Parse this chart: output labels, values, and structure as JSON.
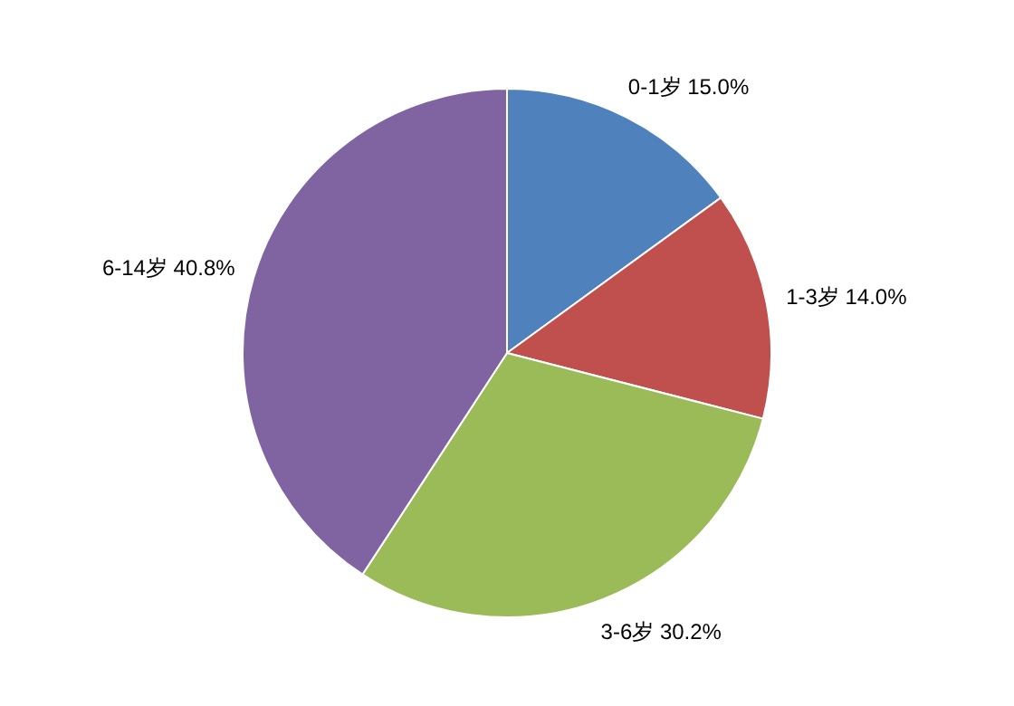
{
  "chart_data": {
    "type": "pie",
    "categories": [
      "0-1岁",
      "1-3岁",
      "3-6岁",
      "6-14岁"
    ],
    "values": [
      15.0,
      14.0,
      30.2,
      40.8
    ],
    "value_labels": [
      "15.0%",
      "14.0%",
      "30.2%",
      "40.8%"
    ],
    "colors": [
      "#4f81bd",
      "#c0504d",
      "#9bbb59",
      "#8064a2"
    ]
  }
}
